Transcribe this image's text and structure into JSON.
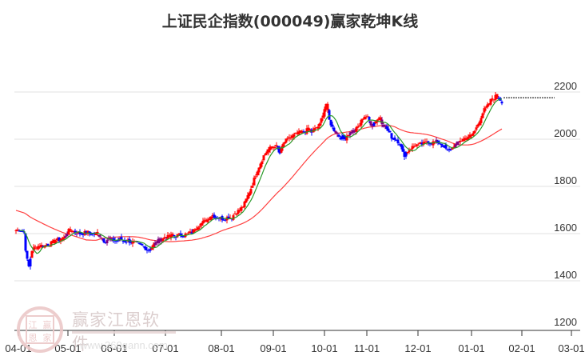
{
  "title": "上证民企指数(000049)赢家乾坤K线",
  "watermark": {
    "brand": "赢家江恩软件",
    "url": "www.360gann.com",
    "logo_chars": [
      "江",
      "赢",
      "恩",
      "家"
    ]
  },
  "chart_data": {
    "type": "candlestick",
    "title": "上证民企指数(000049)赢家乾坤K线",
    "xlabel": "",
    "ylabel": "",
    "ylim": [
      1200,
      2250
    ],
    "grid": true,
    "y_ticks": [
      1200,
      1400,
      1600,
      1800,
      2000,
      2200
    ],
    "x_ticks": [
      "04-01",
      "05-01",
      "06-01",
      "07-01",
      "08-01",
      "09-01",
      "10-01",
      "11-01",
      "12-01",
      "01-01",
      "02-01",
      "03-01"
    ],
    "candle_colors": {
      "up": "#ff0000",
      "down": "#0000ff",
      "neutral": "#800080"
    },
    "series": [
      {
        "name": "close_approx",
        "points": [
          [
            20,
            1614
          ],
          [
            25,
            1618
          ],
          [
            30,
            1605
          ],
          [
            33,
            1500
          ],
          [
            36,
            1460
          ],
          [
            40,
            1530
          ],
          [
            45,
            1545
          ],
          [
            50,
            1550
          ],
          [
            55,
            1548
          ],
          [
            60,
            1555
          ],
          [
            65,
            1560
          ],
          [
            70,
            1570
          ],
          [
            75,
            1575
          ],
          [
            80,
            1582
          ],
          [
            85,
            1610
          ],
          [
            90,
            1615
          ],
          [
            95,
            1605
          ],
          [
            100,
            1600
          ],
          [
            105,
            1602
          ],
          [
            110,
            1605
          ],
          [
            115,
            1598
          ],
          [
            120,
            1600
          ],
          [
            125,
            1592
          ],
          [
            130,
            1570
          ],
          [
            135,
            1575
          ],
          [
            140,
            1572
          ],
          [
            145,
            1570
          ],
          [
            150,
            1575
          ],
          [
            155,
            1568
          ],
          [
            160,
            1570
          ],
          [
            165,
            1565
          ],
          [
            170,
            1560
          ],
          [
            175,
            1550
          ],
          [
            180,
            1545
          ],
          [
            185,
            1530
          ],
          [
            190,
            1545
          ],
          [
            195,
            1560
          ],
          [
            200,
            1575
          ],
          [
            205,
            1580
          ],
          [
            210,
            1585
          ],
          [
            215,
            1590
          ],
          [
            220,
            1590
          ],
          [
            225,
            1595
          ],
          [
            230,
            1595
          ],
          [
            235,
            1598
          ],
          [
            240,
            1605
          ],
          [
            245,
            1625
          ],
          [
            250,
            1640
          ],
          [
            255,
            1650
          ],
          [
            260,
            1660
          ],
          [
            265,
            1680
          ],
          [
            270,
            1670
          ],
          [
            275,
            1665
          ],
          [
            280,
            1665
          ],
          [
            285,
            1668
          ],
          [
            290,
            1670
          ],
          [
            295,
            1690
          ],
          [
            300,
            1700
          ],
          [
            305,
            1720
          ],
          [
            310,
            1760
          ],
          [
            315,
            1800
          ],
          [
            318,
            1830
          ],
          [
            322,
            1870
          ],
          [
            326,
            1900
          ],
          [
            330,
            1930
          ],
          [
            335,
            1955
          ],
          [
            340,
            1965
          ],
          [
            345,
            1975
          ],
          [
            350,
            1940
          ],
          [
            355,
            1985
          ],
          [
            360,
            2000
          ],
          [
            365,
            2010
          ],
          [
            370,
            2020
          ],
          [
            375,
            2025
          ],
          [
            380,
            2030
          ],
          [
            385,
            2040
          ],
          [
            390,
            2030
          ],
          [
            395,
            2045
          ],
          [
            400,
            2060
          ],
          [
            405,
            2120
          ],
          [
            408,
            2150
          ],
          [
            412,
            2080
          ],
          [
            416,
            2050
          ],
          [
            420,
            2030
          ],
          [
            425,
            2010
          ],
          [
            430,
            2000
          ],
          [
            435,
            2020
          ],
          [
            440,
            2030
          ],
          [
            445,
            2040
          ],
          [
            450,
            2060
          ],
          [
            455,
            2100
          ],
          [
            460,
            2090
          ],
          [
            465,
            2060
          ],
          [
            470,
            2080
          ],
          [
            475,
            2090
          ],
          [
            480,
            2060
          ],
          [
            485,
            2040
          ],
          [
            490,
            2010
          ],
          [
            495,
            2000
          ],
          [
            500,
            1985
          ],
          [
            505,
            1930
          ],
          [
            510,
            1950
          ],
          [
            515,
            1965
          ],
          [
            520,
            1975
          ],
          [
            525,
            1978
          ],
          [
            530,
            1980
          ],
          [
            535,
            1990
          ],
          [
            540,
            1985
          ],
          [
            545,
            1990
          ],
          [
            550,
            1985
          ],
          [
            555,
            1970
          ],
          [
            560,
            1950
          ],
          [
            565,
            1960
          ],
          [
            570,
            1975
          ],
          [
            575,
            1990
          ],
          [
            580,
            2000
          ],
          [
            585,
            2010
          ],
          [
            590,
            2015
          ],
          [
            595,
            2040
          ],
          [
            600,
            2080
          ],
          [
            605,
            2120
          ],
          [
            610,
            2140
          ],
          [
            615,
            2170
          ],
          [
            620,
            2180
          ],
          [
            624,
            2176
          ],
          [
            628,
            2160
          ]
        ]
      },
      {
        "name": "MA_fast",
        "color": "#2a9a2a"
      },
      {
        "name": "MA_slow",
        "color": "#ff4040"
      }
    ],
    "last_price_line": 2176
  },
  "axes": {
    "y_labels": [
      "2200",
      "2000",
      "1800",
      "1600",
      "1400",
      "1200"
    ],
    "x_labels": [
      "04-01",
      "05-01",
      "06-01",
      "07-01",
      "08-01",
      "09-01",
      "10-01",
      "11-01",
      "12-01",
      "01-01",
      "02-01",
      "03-01"
    ]
  }
}
